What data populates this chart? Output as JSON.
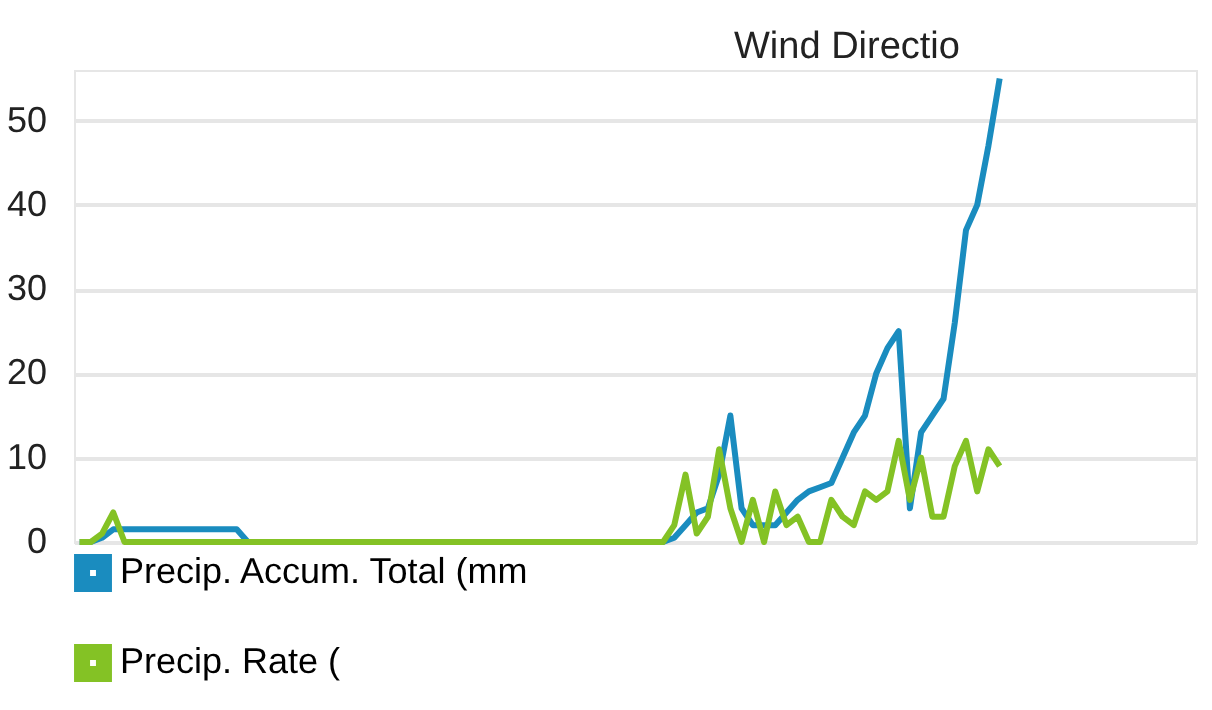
{
  "chart_data": {
    "type": "line",
    "categories": [
      null,
      null,
      null,
      null,
      null,
      null,
      null,
      null,
      null,
      null,
      null,
      null,
      null,
      null,
      null,
      null,
      null,
      null,
      null,
      null,
      null,
      null,
      null,
      null,
      null,
      null,
      null,
      null,
      null,
      null,
      null,
      null,
      null,
      null,
      null,
      null,
      null,
      null,
      null,
      null,
      null,
      null,
      null,
      null,
      null,
      null,
      null,
      null,
      null,
      null,
      null,
      null,
      null,
      null,
      null,
      null,
      null,
      null,
      null,
      null,
      null,
      null,
      null,
      null,
      null,
      null,
      null,
      null,
      null,
      null,
      null,
      null,
      null,
      null,
      null,
      null,
      null,
      null,
      null,
      null,
      null,
      null,
      null,
      null,
      null,
      null,
      null,
      null,
      null,
      null,
      null,
      null,
      null,
      null,
      null,
      null,
      null,
      null,
      null,
      null
    ],
    "series": [
      {
        "name": "Precip. Accum. Total (mm",
        "color": "#1a8cbf",
        "values": [
          0,
          0,
          0.5,
          1.5,
          1.5,
          1.5,
          1.5,
          1.5,
          1.5,
          1.5,
          1.5,
          1.5,
          1.5,
          1.5,
          1.5,
          0,
          0,
          0,
          0,
          0,
          0,
          0,
          0,
          0,
          0,
          0,
          0,
          0,
          0,
          0,
          0,
          0,
          0,
          0,
          0,
          0,
          0,
          0,
          0,
          0,
          0,
          0,
          0,
          0,
          0,
          0,
          0,
          0,
          0,
          0,
          0,
          0,
          0,
          0.5,
          2,
          3.5,
          4,
          8,
          15,
          4,
          2,
          2,
          2,
          3.5,
          5,
          6,
          6.5,
          7,
          10,
          13,
          15,
          20,
          23,
          25,
          4,
          13,
          15,
          17,
          26,
          37,
          40,
          47,
          55,
          null,
          null,
          null,
          null,
          null,
          null,
          null,
          null,
          null,
          null,
          null,
          null,
          null,
          null,
          null,
          null,
          null
        ]
      },
      {
        "name": "Precip. Rate (",
        "color": "#84c225",
        "values": [
          0,
          0,
          1,
          3.5,
          0,
          0,
          0,
          0,
          0,
          0,
          0,
          0,
          0,
          0,
          0,
          0,
          0,
          0,
          0,
          0,
          0,
          0,
          0,
          0,
          0,
          0,
          0,
          0,
          0,
          0,
          0,
          0,
          0,
          0,
          0,
          0,
          0,
          0,
          0,
          0,
          0,
          0,
          0,
          0,
          0,
          0,
          0,
          0,
          0,
          0,
          0,
          0,
          0,
          2,
          8,
          1,
          3,
          11,
          4,
          0,
          5,
          0,
          6,
          2,
          3,
          0,
          0,
          5,
          3,
          2,
          6,
          5,
          6,
          12,
          5,
          10,
          3,
          3,
          9,
          12,
          6,
          11,
          9,
          null,
          null,
          null,
          null,
          null,
          null,
          null,
          null,
          null,
          null,
          null,
          null,
          null,
          null,
          null,
          null,
          null
        ]
      }
    ],
    "ylim": [
      0,
      56
    ],
    "yticks": [
      0,
      10,
      20,
      30,
      40,
      50
    ],
    "grid": "y",
    "legend": "bottom",
    "tick_labels": "y",
    "line_style": "solid",
    "marker": "none",
    "annotations": [
      "Wind Directio"
    ]
  }
}
